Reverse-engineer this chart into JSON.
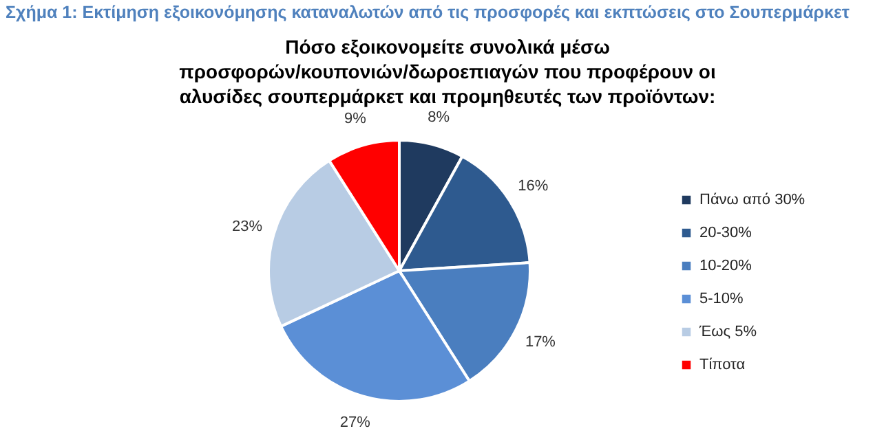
{
  "chart_data": {
    "type": "pie",
    "title": "Σχήμα 1: Εκτίμηση εξοικονόμησης καταναλωτών από τις προσφορές και εκπτώσεις στο Σουπερμάρκετ",
    "subtitle": "Πόσο εξοικονομείτε συνολικά μέσω\nπροσφορών/κουπονιών/δωροεπιαγών που προφέρουν οι\nαλυσίδες σουπερμάρκετ και προμηθευτές των προϊόντων:",
    "categories": [
      "Πάνω από 30%",
      "20-30%",
      "10-20%",
      "5-10%",
      "Έως 5%",
      "Τίποτα"
    ],
    "values": [
      8,
      16,
      17,
      27,
      23,
      9
    ],
    "value_labels": [
      "8%",
      "16%",
      "17%",
      "27%",
      "23%",
      "9%"
    ],
    "colors": [
      "#1f3a5f",
      "#2e5a8f",
      "#4a7ebf",
      "#5b8fd6",
      "#b8cce4",
      "#ff0000"
    ],
    "legend": "right"
  }
}
